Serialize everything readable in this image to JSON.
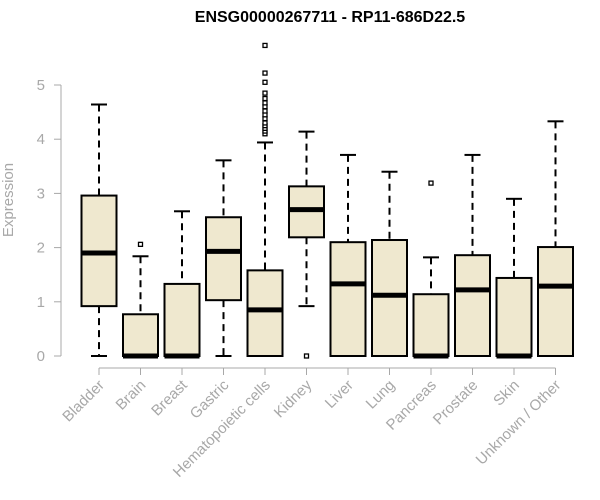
{
  "chart_data": {
    "type": "boxplot",
    "title": "ENSG00000267711 - RP11-686D22.5",
    "xlabel": "",
    "ylabel": "Expression",
    "ylim": [
      0,
      5.8
    ],
    "yticks": [
      0,
      1,
      2,
      3,
      4,
      5
    ],
    "grid": false,
    "colors": {
      "box_fill": "#efe8cf",
      "stroke": "#000000",
      "axis": "#a8a8a8"
    },
    "categories": [
      "Bladder",
      "Brain",
      "Breast",
      "Gastric",
      "Hematopoietic cells",
      "Kidney",
      "Liver",
      "Lung",
      "Pancreas",
      "Prostate",
      "Skin",
      "Unknown / Other"
    ],
    "boxes": [
      {
        "min": 0.0,
        "q1": 0.92,
        "median": 1.9,
        "q3": 2.96,
        "max": 4.64,
        "outliers": []
      },
      {
        "min": 0.0,
        "q1": 0.0,
        "median": 0.0,
        "q3": 0.77,
        "max": 1.84,
        "outliers": [
          2.06
        ]
      },
      {
        "min": 0.0,
        "q1": 0.0,
        "median": 0.0,
        "q3": 1.33,
        "max": 2.67,
        "outliers": []
      },
      {
        "min": 0.0,
        "q1": 1.03,
        "median": 1.93,
        "q3": 2.56,
        "max": 3.61,
        "outliers": []
      },
      {
        "min": 0.0,
        "q1": 0.0,
        "median": 0.85,
        "q3": 1.58,
        "max": 3.94,
        "outliers": [
          4.1,
          4.15,
          4.2,
          4.25,
          4.3,
          4.38,
          4.45,
          4.52,
          4.6,
          4.67,
          4.75,
          4.85,
          5.05,
          5.22,
          5.73
        ]
      },
      {
        "min": 0.92,
        "q1": 2.19,
        "median": 2.7,
        "q3": 3.13,
        "max": 4.14,
        "outliers": [
          0.0
        ]
      },
      {
        "min": 0.0,
        "q1": 0.0,
        "median": 1.33,
        "q3": 2.1,
        "max": 3.71,
        "outliers": []
      },
      {
        "min": 0.0,
        "q1": 0.0,
        "median": 1.12,
        "q3": 2.14,
        "max": 3.4,
        "outliers": []
      },
      {
        "min": 0.0,
        "q1": 0.0,
        "median": 0.0,
        "q3": 1.14,
        "max": 1.82,
        "outliers": [
          3.19
        ]
      },
      {
        "min": 0.0,
        "q1": 0.0,
        "median": 1.22,
        "q3": 1.86,
        "max": 3.71,
        "outliers": []
      },
      {
        "min": 0.0,
        "q1": 0.0,
        "median": 0.0,
        "q3": 1.44,
        "max": 2.9,
        "outliers": []
      },
      {
        "min": 0.0,
        "q1": 0.0,
        "median": 1.29,
        "q3": 2.01,
        "max": 4.33,
        "outliers": []
      }
    ]
  }
}
